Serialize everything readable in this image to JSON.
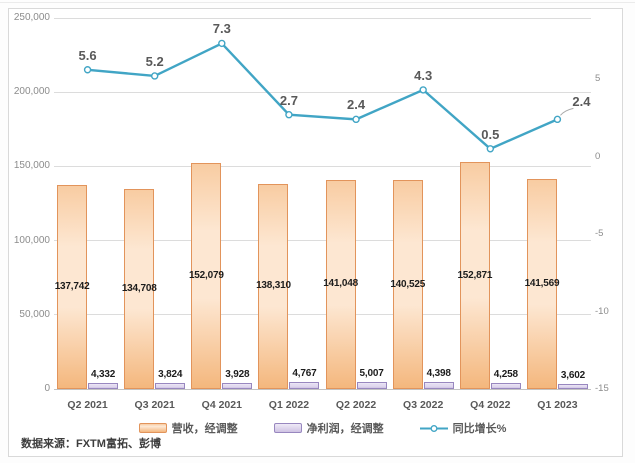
{
  "source_note": "数据来源：FXTM富拓、彭博",
  "chart_data": {
    "type": "combo",
    "title": "",
    "categories": [
      "Q2 2021",
      "Q3 2021",
      "Q4 2021",
      "Q1 2022",
      "Q2 2022",
      "Q3 2022",
      "Q4 2022",
      "Q1 2023"
    ],
    "series": [
      {
        "key": "revenue",
        "name": "营收，经调整",
        "type": "bar",
        "axis": "left",
        "values": [
          137742,
          134708,
          152079,
          138310,
          141048,
          140525,
          152871,
          141569
        ],
        "labels": [
          "137,742",
          "134,708",
          "152,079",
          "138,310",
          "141,048",
          "140,525",
          "152,871",
          "141,569"
        ],
        "label_position": "center",
        "fill_top": "#F8CCA2",
        "fill_mid": "#FDE7D2",
        "fill_bottom": "#F4B77D",
        "border": "#E2945B"
      },
      {
        "key": "net-profit",
        "name": "净利润，经调整",
        "type": "bar",
        "axis": "left",
        "values": [
          4332,
          3824,
          3928,
          4767,
          5007,
          4398,
          4258,
          3602
        ],
        "labels": [
          "4,332",
          "3,824",
          "3,928",
          "4,767",
          "5,007",
          "4,398",
          "4,258",
          "3,602"
        ],
        "label_position": "above",
        "fill_top": "#EFEAF7",
        "fill_mid": "#E2DAF0",
        "fill_bottom": "#CFC3E3",
        "border": "#9887BF"
      },
      {
        "key": "yoy-growth",
        "name": "同比增长%",
        "type": "line",
        "axis": "right",
        "values": [
          5.6,
          5.2,
          7.3,
          2.7,
          2.4,
          4.3,
          0.5,
          2.4
        ],
        "labels": [
          "5.6",
          "5.2",
          "7.3",
          "2.7",
          "2.4",
          "4.3",
          "0.5",
          "2.4"
        ],
        "color": "#41A5C5",
        "marker_fill": "#ffffff",
        "last_label_offset": {
          "dx": 24,
          "dy": -17
        },
        "callout_last_label": true
      }
    ],
    "left_axis": {
      "min": 0,
      "max": 250000,
      "ticks": [
        {
          "v": 250000,
          "label": "250,000"
        },
        {
          "v": 200000,
          "label": "200,000"
        },
        {
          "v": 150000,
          "label": "150,000"
        },
        {
          "v": 100000,
          "label": "100,000"
        },
        {
          "v": 50000,
          "label": "50,000"
        },
        {
          "v": 0,
          "label": "0"
        }
      ]
    },
    "right_axis": {
      "min": -15,
      "max": 8.94,
      "ticks": [
        {
          "v": 5,
          "label": "5"
        },
        {
          "v": 0,
          "label": "0"
        },
        {
          "v": -5,
          "label": "-5"
        },
        {
          "v": -10,
          "label": "-10"
        },
        {
          "v": -15,
          "label": "-15"
        }
      ]
    },
    "grid": true,
    "legend_position": "bottom"
  }
}
